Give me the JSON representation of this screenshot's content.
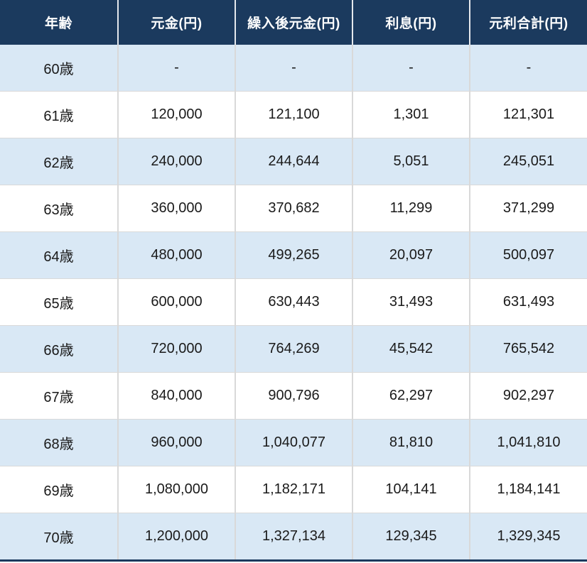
{
  "chart_data": {
    "type": "table",
    "columns": [
      "年齢",
      "元金(円)",
      "繰入後元金(円)",
      "利息(円)",
      "元利合計(円)"
    ],
    "rows": [
      [
        "60歳",
        "-",
        "-",
        "-",
        "-"
      ],
      [
        "61歳",
        "120,000",
        "121,100",
        "1,301",
        "121,301"
      ],
      [
        "62歳",
        "240,000",
        "244,644",
        "5,051",
        "245,051"
      ],
      [
        "63歳",
        "360,000",
        "370,682",
        "11,299",
        "371,299"
      ],
      [
        "64歳",
        "480,000",
        "499,265",
        "20,097",
        "500,097"
      ],
      [
        "65歳",
        "600,000",
        "630,443",
        "31,493",
        "631,493"
      ],
      [
        "66歳",
        "720,000",
        "764,269",
        "45,542",
        "765,542"
      ],
      [
        "67歳",
        "840,000",
        "900,796",
        "62,297",
        "902,297"
      ],
      [
        "68歳",
        "960,000",
        "1,040,077",
        "81,810",
        "1,041,810"
      ],
      [
        "69歳",
        "1,080,000",
        "1,182,171",
        "104,141",
        "1,184,141"
      ],
      [
        "70歳",
        "1,200,000",
        "1,327,134",
        "129,345",
        "1,329,345"
      ]
    ],
    "layout": {
      "grid": true,
      "striped_rows": true,
      "first_stripe_color_row": "60歳"
    }
  },
  "colors": {
    "header_bg": "#1b3a5e",
    "header_text": "#ffffff",
    "stripe_row_bg": "#d9e8f5",
    "white_row_bg": "#ffffff",
    "grid_line": "#d9d9d9",
    "header_grid_line": "#e4e8ed",
    "body_text": "#1a1a1a"
  }
}
